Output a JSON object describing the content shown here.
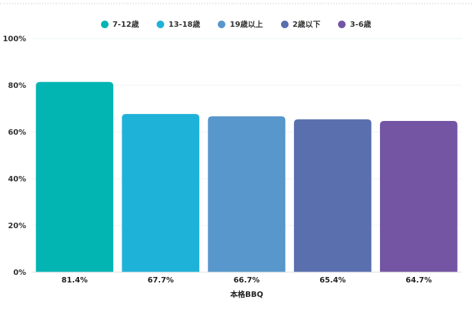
{
  "chart_data": {
    "type": "bar",
    "categories": [
      "7-12歳",
      "13-18歳",
      "19歳以上",
      "2歳以下",
      "3-6歳"
    ],
    "values": [
      81.4,
      67.7,
      66.7,
      65.4,
      64.7
    ],
    "value_labels": [
      "81.4%",
      "67.7%",
      "66.7%",
      "65.4%",
      "64.7%"
    ],
    "xlabel": "本格BBQ",
    "ylabel": "",
    "ylim": [
      0,
      100
    ],
    "yticks": [
      0,
      20,
      40,
      60,
      80,
      100
    ],
    "ytick_labels": [
      "0%",
      "20%",
      "40%",
      "60%",
      "80%",
      "100%"
    ],
    "colors": [
      "#03b5b2",
      "#1fb2d9",
      "#5797cc",
      "#5a6fae",
      "#7355a3"
    ],
    "grid": true,
    "legend_position": "top-center"
  },
  "legend": {
    "items": [
      {
        "label": "7-12歳",
        "color": "#03b5b2"
      },
      {
        "label": "13-18歳",
        "color": "#1fb2d9"
      },
      {
        "label": "19歳以上",
        "color": "#5797cc"
      },
      {
        "label": "2歳以下",
        "color": "#5a6fae"
      },
      {
        "label": "3-6歳",
        "color": "#7355a3"
      }
    ]
  }
}
